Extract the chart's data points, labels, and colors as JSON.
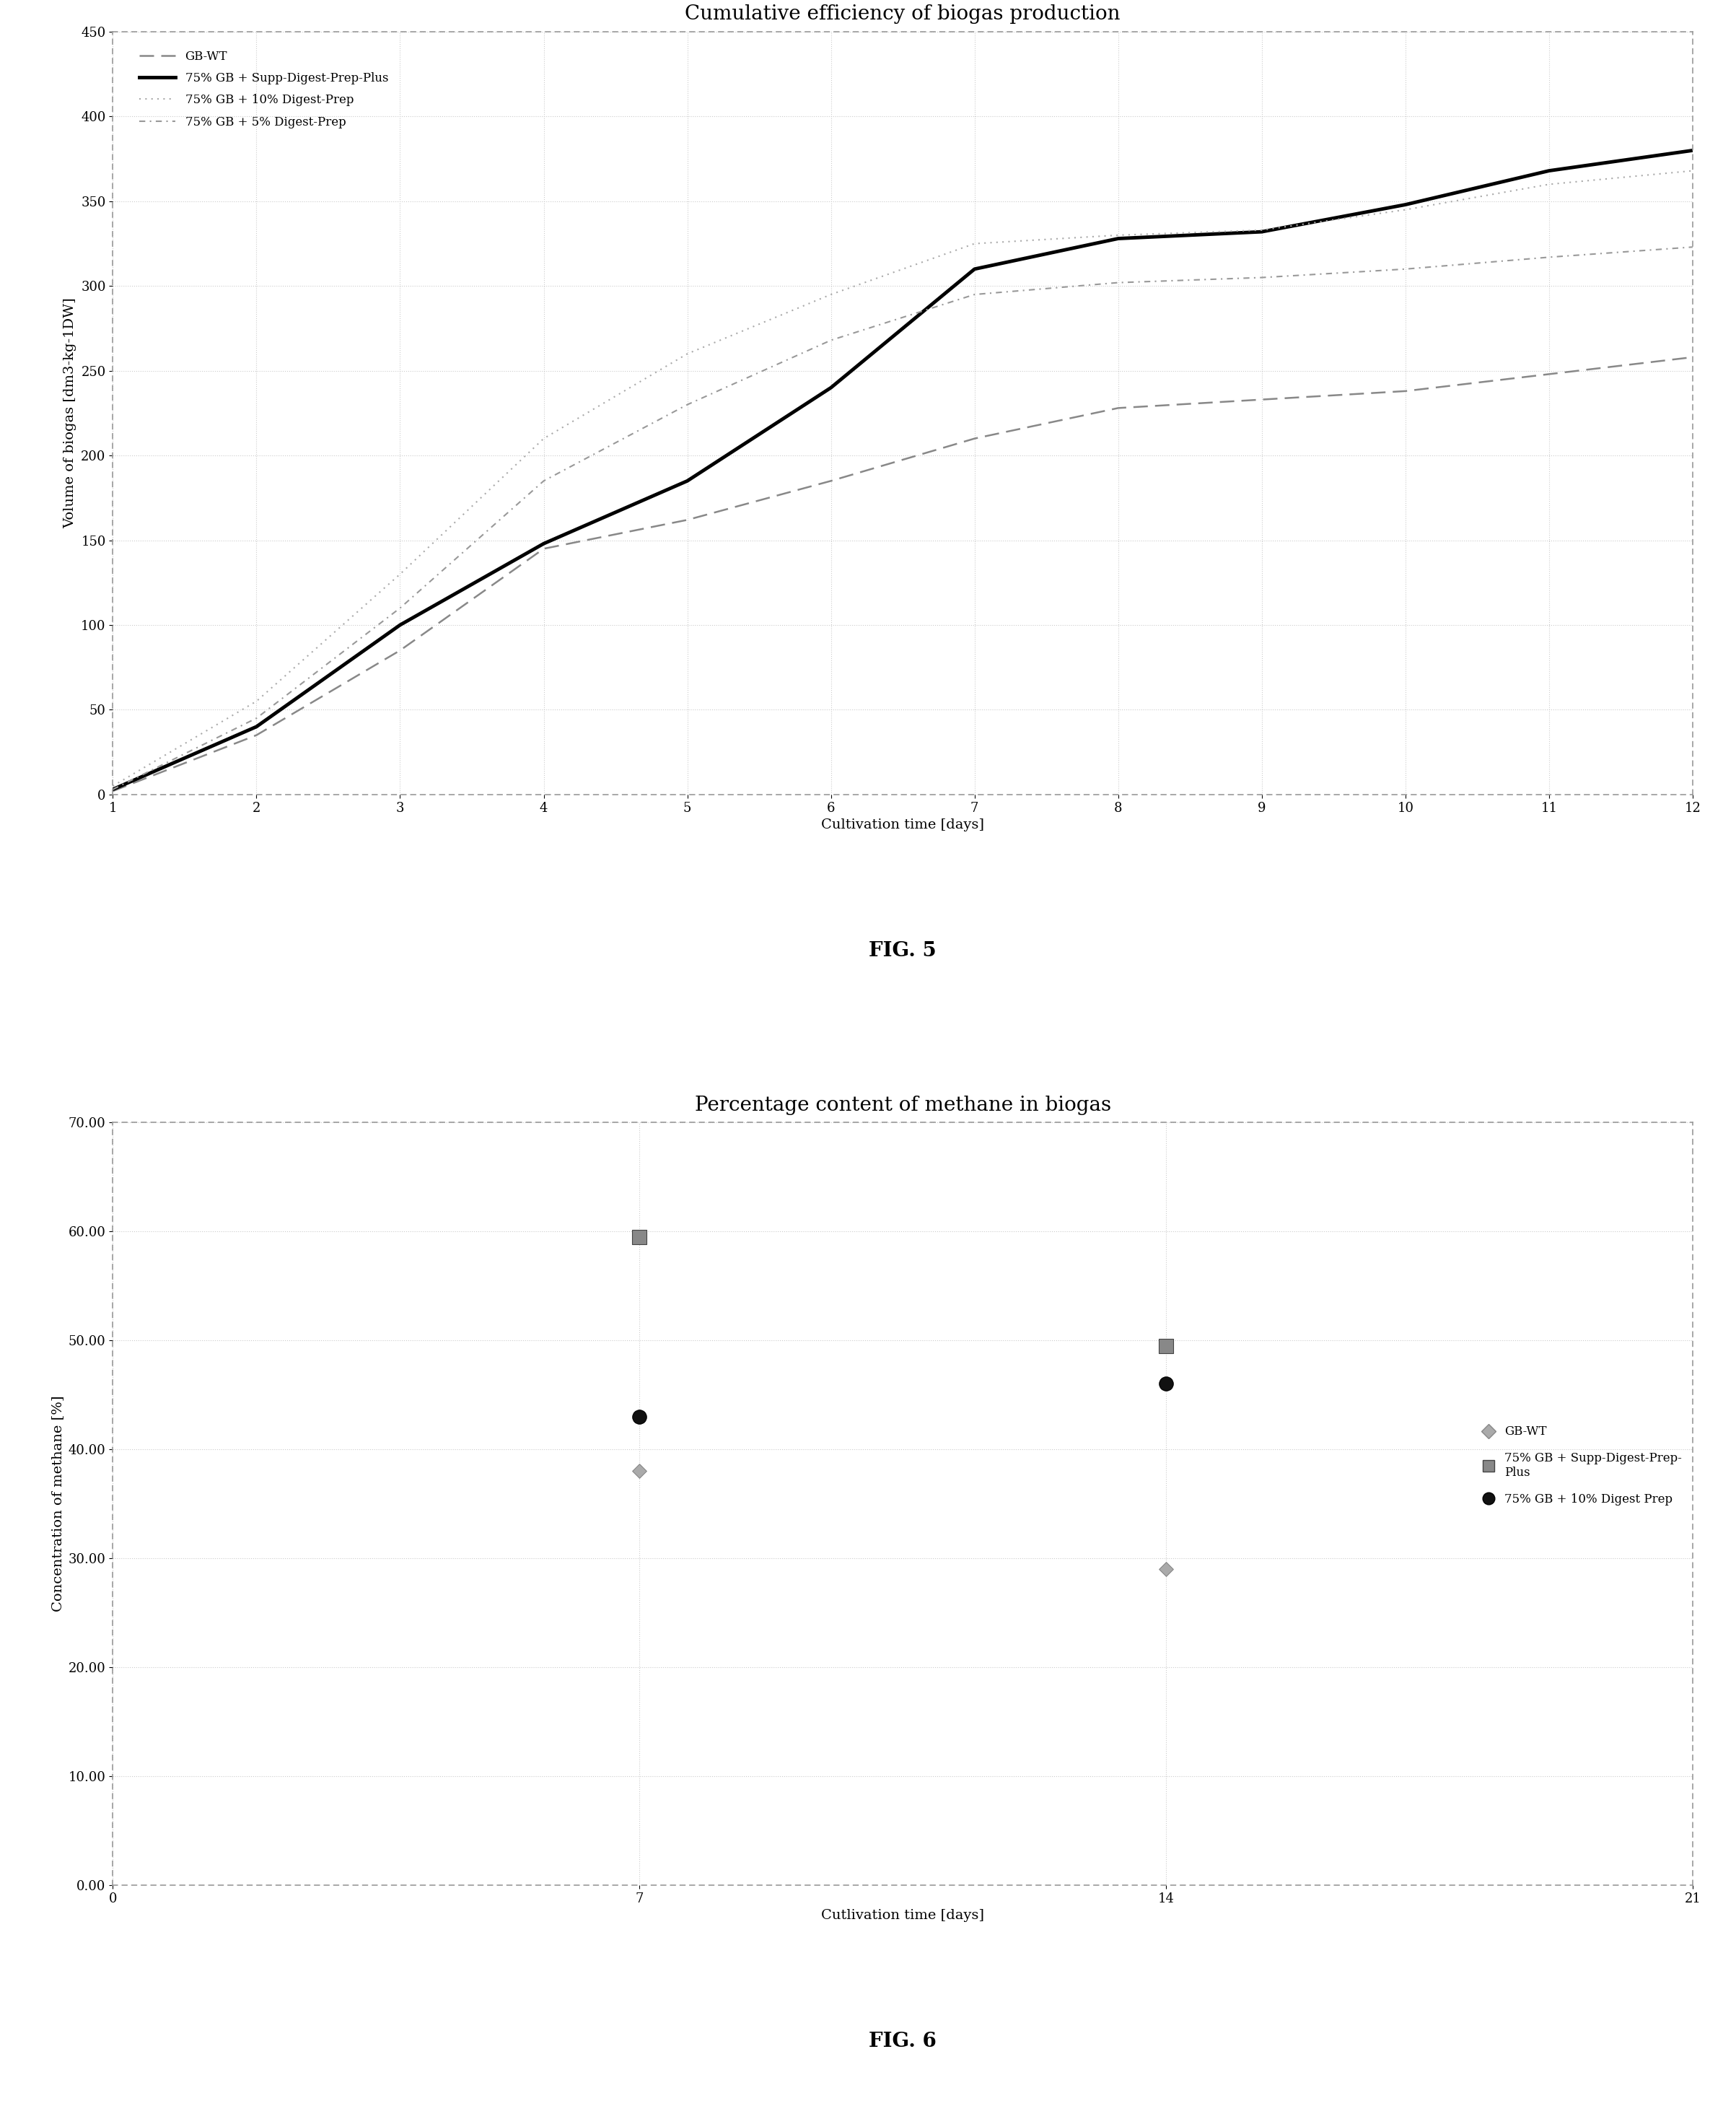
{
  "fig5": {
    "title": "Cumulative efficiency of biogas production",
    "xlabel": "Cultivation time [days]",
    "ylabel": "Volume of biogas [dm3-kg-1DW]",
    "xlim": [
      1,
      12
    ],
    "ylim": [
      0,
      450
    ],
    "yticks": [
      0,
      50,
      100,
      150,
      200,
      250,
      300,
      350,
      400,
      450
    ],
    "xticks": [
      1,
      2,
      3,
      4,
      5,
      6,
      7,
      8,
      9,
      10,
      11,
      12
    ],
    "series": [
      {
        "label": "GB-WT",
        "x": [
          1,
          2,
          3,
          4,
          5,
          6,
          7,
          8,
          9,
          10,
          11,
          12
        ],
        "y": [
          2,
          35,
          85,
          145,
          162,
          185,
          210,
          228,
          233,
          238,
          248,
          258
        ],
        "color": "#888888",
        "linestyle": "--",
        "linewidth": 1.8,
        "dashes": [
          8,
          4
        ]
      },
      {
        "label": "75% GB + Supp-Digest-Prep-Plus",
        "x": [
          1,
          2,
          3,
          4,
          5,
          6,
          7,
          8,
          9,
          10,
          11,
          12
        ],
        "y": [
          3,
          40,
          100,
          148,
          185,
          240,
          310,
          328,
          332,
          348,
          368,
          380
        ],
        "color": "#000000",
        "linestyle": "-",
        "linewidth": 3.5,
        "dashes": []
      },
      {
        "label": "75% GB + 10% Digest-Prep",
        "x": [
          1,
          2,
          3,
          4,
          5,
          6,
          7,
          8,
          9,
          10,
          11,
          12
        ],
        "y": [
          5,
          55,
          130,
          210,
          260,
          295,
          325,
          330,
          333,
          345,
          360,
          368
        ],
        "color": "#aaaaaa",
        "linestyle": "-.",
        "linewidth": 1.5,
        "dashes": [
          1,
          3,
          1,
          3
        ]
      },
      {
        "label": "75% GB + 5% Digest-Prep",
        "x": [
          1,
          2,
          3,
          4,
          5,
          6,
          7,
          8,
          9,
          10,
          11,
          12
        ],
        "y": [
          3,
          45,
          110,
          185,
          230,
          268,
          295,
          302,
          305,
          310,
          317,
          323
        ],
        "color": "#999999",
        "linestyle": "--",
        "linewidth": 1.5,
        "dashes": [
          4,
          3,
          1,
          3
        ]
      }
    ]
  },
  "fig6": {
    "title": "Percentage content of methane in biogas",
    "xlabel": "Cutlivation time [days]",
    "ylabel": "Concentration of methane [%]",
    "xlim": [
      0,
      21
    ],
    "ylim": [
      0,
      70
    ],
    "yticks": [
      0.0,
      10.0,
      20.0,
      30.0,
      40.0,
      50.0,
      60.0,
      70.0
    ],
    "xticks": [
      0,
      7,
      14,
      21
    ],
    "series": [
      {
        "label": "GB-WT",
        "x": [
          7,
          14
        ],
        "y": [
          38.0,
          29.0
        ],
        "color": "#aaaaaa",
        "marker": "D",
        "markersize": 10,
        "edgecolor": "#888888"
      },
      {
        "label": "75% GB + Supp-Digest-Prep-Plus",
        "x": [
          7,
          14
        ],
        "y": [
          59.5,
          49.5
        ],
        "color": "#888888",
        "marker": "s",
        "markersize": 14,
        "edgecolor": "#444444"
      },
      {
        "label": "75% GB + 10% Digest Prep",
        "x": [
          7,
          14
        ],
        "y": [
          43.0,
          46.0
        ],
        "color": "#111111",
        "marker": "o",
        "markersize": 14,
        "edgecolor": "#000000"
      }
    ]
  },
  "fig5_label": "FIG. 5",
  "fig6_label": "FIG. 6",
  "background_color": "#ffffff",
  "plot_bg_color": "#ffffff",
  "grid_color": "#cccccc",
  "border_dash_color": "#aaaaaa",
  "title_fontsize": 20,
  "axis_label_fontsize": 14,
  "tick_fontsize": 13,
  "legend_fontsize": 12,
  "fig_label_fontsize": 20
}
